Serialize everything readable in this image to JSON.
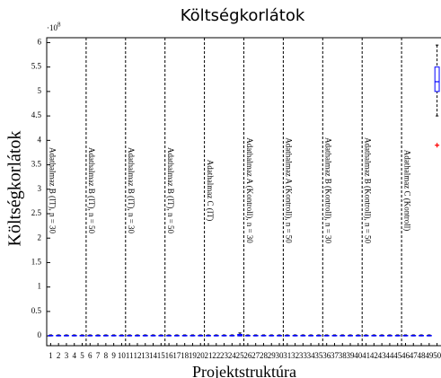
{
  "chart_data": {
    "type": "box",
    "title": "Költségkorlátok",
    "ylabel": "Költségkorlátok",
    "xlabel": "Projektstruktúra",
    "y_multiplier": "·10",
    "y_exponent": "8",
    "categories": [
      1,
      2,
      3,
      4,
      5,
      6,
      7,
      8,
      9,
      10,
      11,
      12,
      13,
      14,
      15,
      16,
      17,
      18,
      19,
      20,
      21,
      22,
      23,
      24,
      25,
      26,
      27,
      28,
      29,
      30,
      31,
      32,
      33,
      34,
      35,
      36,
      37,
      38,
      39,
      40,
      41,
      42,
      43,
      44,
      45,
      46,
      47,
      48,
      49,
      50
    ],
    "groups": [
      "Adathalmaz B (IT), n = 30",
      "Adathalmaz B (IT), n = 50",
      "Adathalmaz B (IT), n = 30",
      "Adathalmaz B (IT), n = 50",
      "Adathalmaz C (IT)",
      "Adathalmaz A (Kontroll), n = 30",
      "Adathalmaz A (Kontroll), n = 50",
      "Adathalmaz B (Kontroll), n = 30",
      "Adathalmaz B (Kontroll), n = 50",
      "Adathalmaz C (Kontroll)"
    ],
    "low": [
      0,
      0,
      0,
      0,
      0,
      0,
      0,
      0,
      0,
      0,
      0,
      0,
      0,
      0,
      0,
      0,
      0,
      0,
      0,
      0,
      0,
      0,
      0,
      0,
      0,
      0,
      0,
      0,
      0,
      0,
      0,
      0,
      0,
      0,
      0,
      0,
      0,
      0,
      0,
      0,
      0,
      0,
      0,
      0,
      0,
      0,
      0,
      0,
      0,
      4.5
    ],
    "q1": [
      0,
      0,
      0,
      0,
      0,
      0,
      0,
      0,
      0,
      0,
      0,
      0,
      0,
      0,
      0,
      0,
      0,
      0,
      0,
      0,
      0,
      0,
      0,
      0,
      0,
      0,
      0,
      0,
      0,
      0,
      0,
      0,
      0,
      0,
      0,
      0,
      0,
      0,
      0,
      0,
      0,
      0,
      0,
      0,
      0,
      0,
      0,
      0,
      0,
      5.0
    ],
    "median": [
      0.005,
      0.005,
      0.005,
      0.005,
      0.005,
      0.005,
      0.005,
      0.005,
      0.005,
      0.005,
      0.005,
      0.005,
      0.005,
      0.005,
      0.005,
      0.005,
      0.005,
      0.005,
      0.005,
      0.005,
      0.005,
      0.005,
      0.005,
      0.005,
      0.01,
      0.005,
      0.005,
      0.005,
      0.005,
      0.005,
      0.005,
      0.005,
      0.005,
      0.005,
      0.005,
      0.005,
      0.005,
      0.005,
      0.005,
      0.005,
      0.005,
      0.005,
      0.005,
      0.005,
      0.005,
      0.005,
      0.005,
      0.005,
      0.005,
      5.2
    ],
    "q3": [
      0.01,
      0.01,
      0.01,
      0.01,
      0.01,
      0.01,
      0.01,
      0.01,
      0.01,
      0.01,
      0.01,
      0.01,
      0.01,
      0.01,
      0.01,
      0.01,
      0.01,
      0.01,
      0.01,
      0.01,
      0.01,
      0.01,
      0.01,
      0.01,
      0.03,
      0.01,
      0.01,
      0.01,
      0.01,
      0.01,
      0.01,
      0.01,
      0.01,
      0.01,
      0.01,
      0.01,
      0.01,
      0.01,
      0.01,
      0.01,
      0.01,
      0.01,
      0.01,
      0.01,
      0.01,
      0.01,
      0.01,
      0.01,
      0.01,
      5.5
    ],
    "high": [
      0.02,
      0.02,
      0.02,
      0.02,
      0.02,
      0.02,
      0.02,
      0.02,
      0.02,
      0.02,
      0.02,
      0.02,
      0.02,
      0.02,
      0.02,
      0.02,
      0.02,
      0.02,
      0.02,
      0.02,
      0.02,
      0.02,
      0.02,
      0.02,
      0.06,
      0.02,
      0.02,
      0.02,
      0.02,
      0.02,
      0.02,
      0.02,
      0.02,
      0.02,
      0.02,
      0.02,
      0.02,
      0.02,
      0.02,
      0.02,
      0.02,
      0.02,
      0.02,
      0.02,
      0.02,
      0.02,
      0.02,
      0.02,
      0.02,
      5.95
    ],
    "outliers": [
      [],
      [],
      [],
      [],
      [],
      [],
      [],
      [],
      [],
      [],
      [],
      [],
      [],
      [],
      [],
      [],
      [],
      [],
      [],
      [],
      [],
      [],
      [],
      [],
      [],
      [],
      [],
      [],
      [],
      [],
      [],
      [],
      [],
      [],
      [],
      [],
      [],
      [],
      [],
      [],
      [],
      [],
      [],
      [],
      [],
      [],
      [],
      [],
      [],
      [
        3.9
      ]
    ],
    "box_color": "#0000ff",
    "median_color": "#0000ff",
    "outlier_color": "#ff0000",
    "ylim": [
      -0.2,
      6.1
    ],
    "yticks": [
      0,
      0.5,
      1,
      1.5,
      2,
      2.5,
      3,
      3.5,
      4,
      4.5,
      5,
      5.5,
      6
    ]
  }
}
